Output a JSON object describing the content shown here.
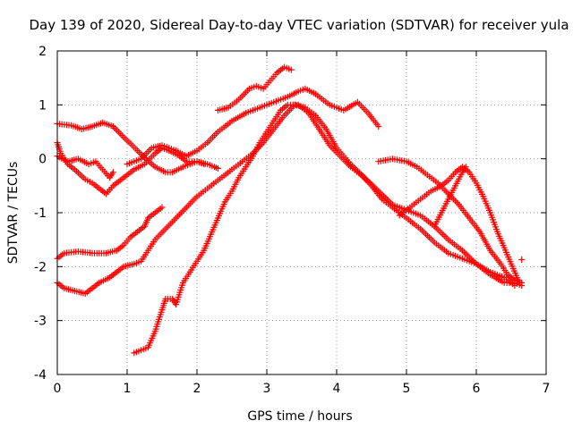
{
  "chart_data": {
    "type": "scatter",
    "title": "Day 139 of 2020, Sidereal Day-to-day VTEC variation (SDTVAR) for receiver yula",
    "xlabel": "GPS time / hours",
    "ylabel": "SDTVAR / TECUs",
    "xlim": [
      0,
      7
    ],
    "ylim": [
      -4,
      2
    ],
    "xticks": [
      0,
      1,
      2,
      3,
      4,
      5,
      6,
      7
    ],
    "yticks": [
      -4,
      -3,
      -2,
      -1,
      0,
      1,
      2
    ],
    "grid": true,
    "marker": "+",
    "color": "#ff0000",
    "series": [
      {
        "name": "trace-1",
        "points": [
          [
            0.0,
            0.65
          ],
          [
            0.2,
            0.62
          ],
          [
            0.35,
            0.55
          ],
          [
            0.5,
            0.6
          ],
          [
            0.65,
            0.67
          ],
          [
            0.8,
            0.6
          ],
          [
            0.95,
            0.4
          ],
          [
            1.05,
            0.28
          ],
          [
            1.15,
            0.15
          ],
          [
            1.25,
            0.02
          ],
          [
            1.4,
            -0.15
          ],
          [
            1.55,
            -0.25
          ],
          [
            1.65,
            -0.25
          ],
          [
            1.8,
            -0.15
          ],
          [
            2.0,
            -0.05
          ],
          [
            2.15,
            -0.1
          ],
          [
            2.25,
            -0.15
          ],
          [
            2.3,
            -0.18
          ]
        ]
      },
      {
        "name": "trace-2",
        "points": [
          [
            0.0,
            0.3
          ],
          [
            0.05,
            0.1
          ],
          [
            0.15,
            -0.1
          ],
          [
            0.25,
            -0.2
          ],
          [
            0.4,
            -0.38
          ],
          [
            0.5,
            -0.45
          ],
          [
            0.6,
            -0.55
          ],
          [
            0.7,
            -0.65
          ],
          [
            0.8,
            -0.5
          ],
          [
            0.9,
            -0.4
          ],
          [
            1.0,
            -0.3
          ],
          [
            1.1,
            -0.2
          ],
          [
            1.25,
            -0.1
          ],
          [
            1.4,
            0.1
          ],
          [
            1.5,
            0.2
          ],
          [
            1.6,
            0.15
          ],
          [
            1.75,
            0.05
          ],
          [
            1.85,
            -0.05
          ],
          [
            2.0,
            -0.05
          ],
          [
            2.1,
            -0.1
          ]
        ]
      },
      {
        "name": "trace-3",
        "points": [
          [
            0.0,
            0.05
          ],
          [
            0.15,
            -0.05
          ],
          [
            0.3,
            0.0
          ],
          [
            0.45,
            -0.1
          ],
          [
            0.55,
            -0.05
          ],
          [
            0.65,
            -0.2
          ],
          [
            0.75,
            -0.35
          ],
          [
            0.8,
            -0.25
          ]
        ]
      },
      {
        "name": "trace-4",
        "points": [
          [
            1.0,
            -0.1
          ],
          [
            1.2,
            0.0
          ],
          [
            1.35,
            0.2
          ],
          [
            1.5,
            0.25
          ],
          [
            1.7,
            0.15
          ],
          [
            1.85,
            0.05
          ],
          [
            2.0,
            0.15
          ],
          [
            2.15,
            0.3
          ],
          [
            2.3,
            0.5
          ],
          [
            2.5,
            0.7
          ],
          [
            2.7,
            0.85
          ],
          [
            2.9,
            0.95
          ],
          [
            3.1,
            1.05
          ],
          [
            3.3,
            1.15
          ],
          [
            3.45,
            1.25
          ],
          [
            3.55,
            1.3
          ],
          [
            3.7,
            1.2
          ],
          [
            3.9,
            1.0
          ],
          [
            4.1,
            0.9
          ],
          [
            4.3,
            1.05
          ],
          [
            4.45,
            0.85
          ],
          [
            4.6,
            0.6
          ]
        ]
      },
      {
        "name": "trace-5",
        "points": [
          [
            0.0,
            -1.85
          ],
          [
            0.1,
            -1.75
          ],
          [
            0.3,
            -1.72
          ],
          [
            0.5,
            -1.75
          ],
          [
            0.7,
            -1.75
          ],
          [
            0.85,
            -1.7
          ],
          [
            0.95,
            -1.6
          ],
          [
            1.05,
            -1.45
          ],
          [
            1.15,
            -1.35
          ],
          [
            1.25,
            -1.25
          ],
          [
            1.3,
            -1.1
          ],
          [
            1.4,
            -1.0
          ],
          [
            1.5,
            -0.9
          ]
        ]
      },
      {
        "name": "trace-6",
        "points": [
          [
            0.0,
            -2.3
          ],
          [
            0.1,
            -2.4
          ],
          [
            0.25,
            -2.45
          ],
          [
            0.4,
            -2.5
          ],
          [
            0.5,
            -2.4
          ],
          [
            0.6,
            -2.3
          ],
          [
            0.75,
            -2.2
          ],
          [
            0.85,
            -2.1
          ],
          [
            0.95,
            -2.0
          ],
          [
            1.1,
            -1.95
          ],
          [
            1.2,
            -1.9
          ],
          [
            1.3,
            -1.7
          ],
          [
            1.4,
            -1.5
          ],
          [
            1.55,
            -1.3
          ],
          [
            1.7,
            -1.1
          ],
          [
            1.85,
            -0.9
          ],
          [
            2.0,
            -0.7
          ],
          [
            2.15,
            -0.55
          ],
          [
            2.3,
            -0.4
          ],
          [
            2.5,
            -0.2
          ],
          [
            2.65,
            -0.05
          ],
          [
            2.8,
            0.1
          ],
          [
            2.95,
            0.3
          ],
          [
            3.1,
            0.55
          ],
          [
            3.25,
            0.8
          ],
          [
            3.4,
            1.0
          ],
          [
            3.55,
            0.95
          ],
          [
            3.7,
            0.8
          ],
          [
            3.85,
            0.55
          ],
          [
            4.0,
            0.2
          ],
          [
            4.2,
            -0.1
          ],
          [
            4.4,
            -0.35
          ],
          [
            4.6,
            -0.6
          ],
          [
            4.8,
            -0.85
          ],
          [
            5.0,
            -0.95
          ],
          [
            5.2,
            -1.05
          ],
          [
            5.4,
            -1.25
          ],
          [
            5.6,
            -1.5
          ],
          [
            5.8,
            -1.7
          ],
          [
            6.0,
            -1.95
          ],
          [
            6.2,
            -2.15
          ],
          [
            6.4,
            -2.3
          ],
          [
            6.55,
            -2.3
          ],
          [
            6.65,
            -2.35
          ]
        ]
      },
      {
        "name": "trace-7",
        "points": [
          [
            1.1,
            -3.6
          ],
          [
            1.2,
            -3.55
          ],
          [
            1.3,
            -3.5
          ],
          [
            1.4,
            -3.2
          ],
          [
            1.5,
            -2.8
          ],
          [
            1.55,
            -2.6
          ],
          [
            1.65,
            -2.6
          ],
          [
            1.7,
            -2.7
          ],
          [
            1.8,
            -2.3
          ],
          [
            1.9,
            -2.1
          ],
          [
            2.0,
            -1.9
          ],
          [
            2.1,
            -1.7
          ],
          [
            2.2,
            -1.4
          ],
          [
            2.3,
            -1.1
          ],
          [
            2.4,
            -0.8
          ],
          [
            2.5,
            -0.6
          ],
          [
            2.6,
            -0.35
          ],
          [
            2.7,
            -0.15
          ],
          [
            2.8,
            0.05
          ],
          [
            2.9,
            0.3
          ],
          [
            3.0,
            0.5
          ],
          [
            3.1,
            0.7
          ],
          [
            3.2,
            0.9
          ],
          [
            3.3,
            1.0
          ],
          [
            3.45,
            1.0
          ],
          [
            3.6,
            0.85
          ],
          [
            3.75,
            0.55
          ],
          [
            3.9,
            0.25
          ],
          [
            4.05,
            0.05
          ],
          [
            4.2,
            -0.15
          ],
          [
            4.35,
            -0.3
          ],
          [
            4.5,
            -0.5
          ],
          [
            4.65,
            -0.75
          ],
          [
            4.8,
            -0.9
          ],
          [
            5.0,
            -1.1
          ],
          [
            5.2,
            -1.3
          ],
          [
            5.4,
            -1.55
          ],
          [
            5.6,
            -1.75
          ],
          [
            5.8,
            -1.85
          ],
          [
            6.0,
            -1.95
          ],
          [
            6.2,
            -2.1
          ],
          [
            6.4,
            -2.2
          ],
          [
            6.55,
            -2.35
          ]
        ]
      },
      {
        "name": "trace-8",
        "points": [
          [
            2.3,
            0.9
          ],
          [
            2.45,
            0.95
          ],
          [
            2.6,
            1.1
          ],
          [
            2.75,
            1.3
          ],
          [
            2.85,
            1.35
          ],
          [
            2.95,
            1.3
          ],
          [
            3.05,
            1.45
          ],
          [
            3.15,
            1.6
          ],
          [
            3.25,
            1.7
          ],
          [
            3.35,
            1.65
          ]
        ]
      },
      {
        "name": "trace-9",
        "points": [
          [
            4.6,
            -0.05
          ],
          [
            4.8,
            0.0
          ],
          [
            5.0,
            -0.05
          ],
          [
            5.15,
            -0.15
          ],
          [
            5.3,
            -0.3
          ],
          [
            5.45,
            -0.45
          ],
          [
            5.6,
            -0.65
          ],
          [
            5.75,
            -0.85
          ],
          [
            5.9,
            -1.1
          ],
          [
            6.05,
            -1.35
          ],
          [
            6.2,
            -1.7
          ],
          [
            6.35,
            -1.95
          ],
          [
            6.45,
            -2.15
          ],
          [
            6.55,
            -2.25
          ],
          [
            6.65,
            -2.3
          ]
        ]
      },
      {
        "name": "trace-10",
        "points": [
          [
            4.9,
            -1.05
          ],
          [
            5.05,
            -0.9
          ],
          [
            5.2,
            -0.75
          ],
          [
            5.35,
            -0.6
          ],
          [
            5.5,
            -0.5
          ],
          [
            5.6,
            -0.4
          ],
          [
            5.7,
            -0.25
          ],
          [
            5.8,
            -0.15
          ],
          [
            5.9,
            -0.25
          ],
          [
            6.0,
            -0.45
          ],
          [
            6.1,
            -0.7
          ],
          [
            6.2,
            -1.0
          ],
          [
            6.3,
            -1.35
          ],
          [
            6.4,
            -1.65
          ],
          [
            6.5,
            -1.95
          ],
          [
            6.6,
            -2.25
          ]
        ]
      },
      {
        "name": "trace-11",
        "points": [
          [
            5.4,
            -1.25
          ],
          [
            5.5,
            -1.0
          ],
          [
            5.6,
            -0.75
          ],
          [
            5.7,
            -0.5
          ],
          [
            5.8,
            -0.25
          ],
          [
            5.85,
            -0.15
          ]
        ]
      },
      {
        "name": "trace-12",
        "points": [
          [
            6.65,
            -1.87
          ]
        ]
      }
    ]
  }
}
